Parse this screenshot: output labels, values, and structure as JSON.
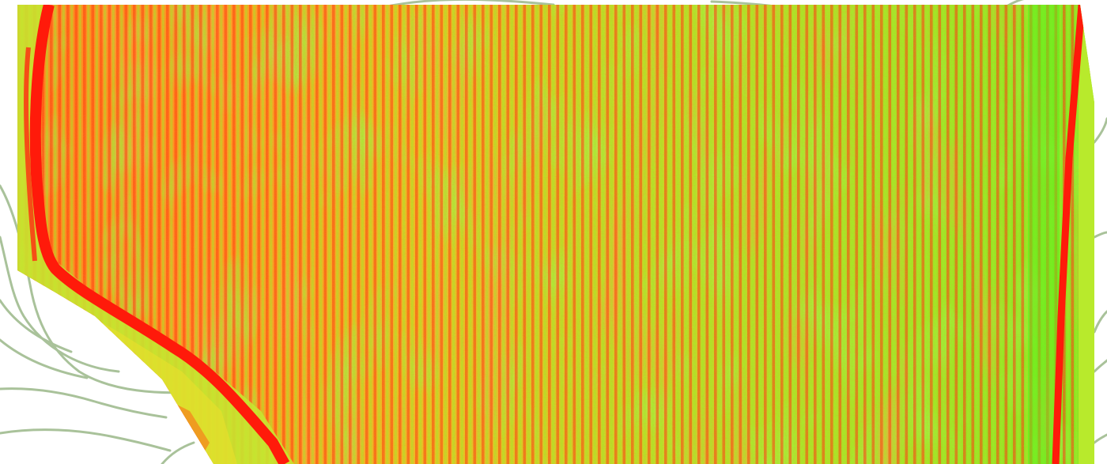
{
  "map": {
    "layer": "ndvi-false-color-orthomosaic",
    "basemap": "topographic-contour-lines",
    "colors": {
      "background": "#ffffff",
      "contour_line": "#a9c29a",
      "ndvi_low": "#ff1a0a",
      "ndvi_mid_low": "#ff7a1c",
      "ndvi_mid": "#ffd21f",
      "ndvi_mid_high": "#b5ea2a",
      "ndvi_high": "#4cf01a"
    },
    "zoom_controls_visible": false,
    "text_labels": []
  }
}
